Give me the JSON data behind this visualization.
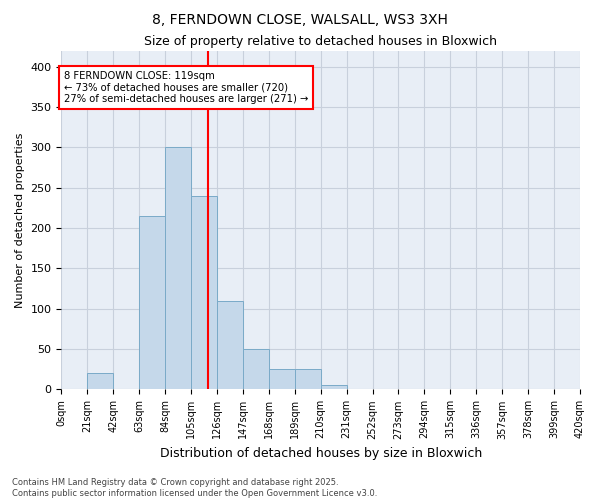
{
  "title": "8, FERNDOWN CLOSE, WALSALL, WS3 3XH",
  "subtitle": "Size of property relative to detached houses in Bloxwich",
  "xlabel": "Distribution of detached houses by size in Bloxwich",
  "ylabel": "Number of detached properties",
  "bar_color": "#c5d8ea",
  "bar_edge_color": "#7aaac8",
  "grid_color": "#c8d0dc",
  "background_color": "#e8eef6",
  "vline_x": 119,
  "vline_color": "red",
  "annotation_line1": "8 FERNDOWN CLOSE: 119sqm",
  "annotation_line2": "← 73% of detached houses are smaller (720)",
  "annotation_line3": "27% of semi-detached houses are larger (271) →",
  "annotation_box_color": "white",
  "annotation_box_edge": "red",
  "bin_edges": [
    0,
    21,
    42,
    63,
    84,
    105,
    126,
    147,
    168,
    189,
    210,
    231,
    252,
    273,
    294,
    315,
    336,
    357,
    378,
    399,
    420
  ],
  "bin_heights": [
    1,
    20,
    0,
    215,
    300,
    240,
    110,
    50,
    25,
    25,
    5,
    0,
    1,
    0,
    0,
    1,
    0,
    1,
    0,
    1
  ],
  "ylim": [
    0,
    420
  ],
  "yticks": [
    0,
    50,
    100,
    150,
    200,
    250,
    300,
    350,
    400
  ],
  "footnote_line1": "Contains HM Land Registry data © Crown copyright and database right 2025.",
  "footnote_line2": "Contains public sector information licensed under the Open Government Licence v3.0."
}
